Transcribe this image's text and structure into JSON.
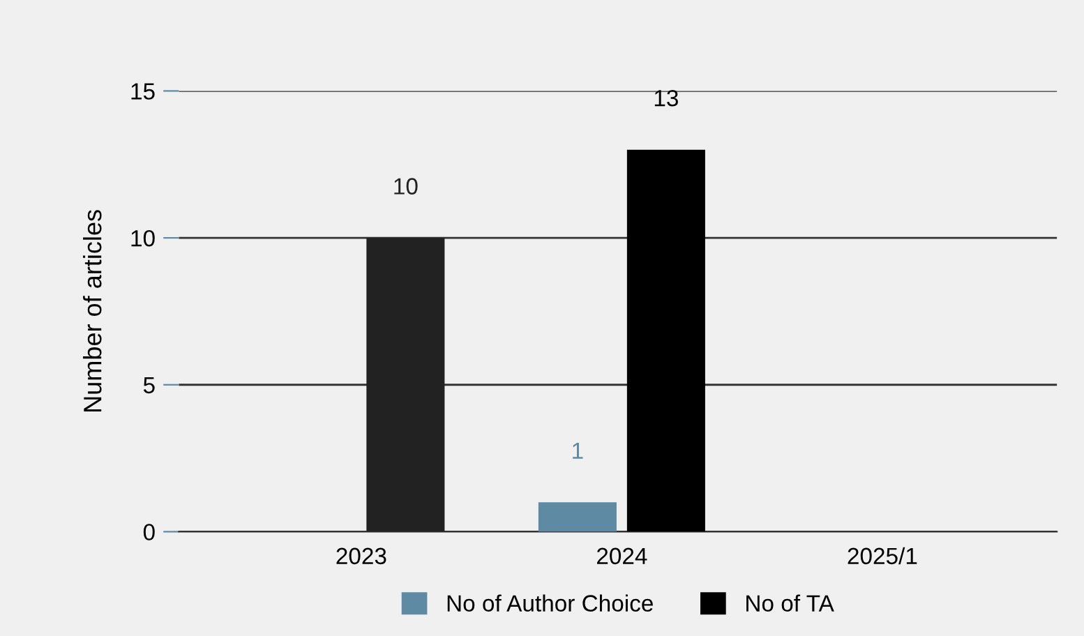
{
  "chart_data": {
    "type": "bar",
    "ylabel": "Number of articles",
    "categories": [
      "2023",
      "2024",
      "2025/1"
    ],
    "series": [
      {
        "name": "No of Author Choice",
        "color": "#5f8aa3",
        "values": [
          0,
          1,
          0
        ],
        "value_labels": [
          null,
          "1",
          null
        ]
      },
      {
        "name": "No of TA",
        "color": "#000000",
        "colors": [
          "#222222",
          "#000000",
          "#000000"
        ],
        "values": [
          10,
          13,
          0
        ],
        "value_labels": [
          "10",
          "13",
          null
        ]
      }
    ],
    "ylim": [
      0,
      15
    ],
    "yticks": [
      0,
      5,
      10,
      15
    ],
    "grid": "y",
    "legend": "bottom"
  }
}
